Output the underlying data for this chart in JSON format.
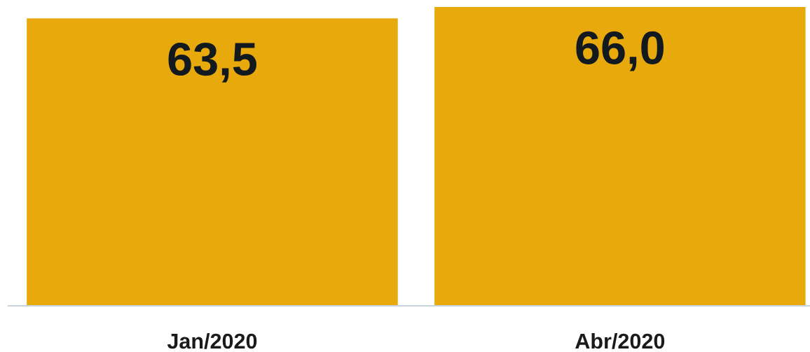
{
  "chart_data": {
    "type": "bar",
    "categories": [
      "Jan/2020",
      "Abr/2020"
    ],
    "values": [
      63.5,
      66.0
    ],
    "color": "#e8a90c",
    "value_labels": [
      "63,5",
      "66,0"
    ],
    "tick_labels": "x"
  }
}
